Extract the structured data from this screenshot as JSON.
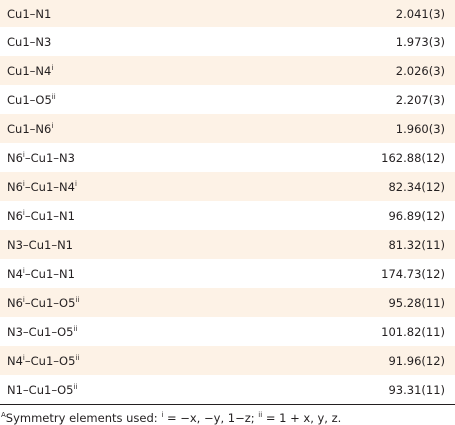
{
  "table": {
    "rows": [
      {
        "atoms": [
          "Cu1",
          "N1"
        ],
        "sup": [
          "",
          ""
        ],
        "value": "2.041(3)"
      },
      {
        "atoms": [
          "Cu1",
          "N3"
        ],
        "sup": [
          "",
          ""
        ],
        "value": "1.973(3)"
      },
      {
        "atoms": [
          "Cu1",
          "N4"
        ],
        "sup": [
          "",
          "i"
        ],
        "value": "2.026(3)"
      },
      {
        "atoms": [
          "Cu1",
          "O5"
        ],
        "sup": [
          "",
          "ii"
        ],
        "value": "2.207(3)"
      },
      {
        "atoms": [
          "Cu1",
          "N6"
        ],
        "sup": [
          "",
          "i"
        ],
        "value": "1.960(3)"
      },
      {
        "atoms": [
          "N6",
          "Cu1",
          "N3"
        ],
        "sup": [
          "i",
          "",
          ""
        ],
        "value": "162.88(12)"
      },
      {
        "atoms": [
          "N6",
          "Cu1",
          "N4"
        ],
        "sup": [
          "i",
          "",
          "i"
        ],
        "value": "82.34(12)"
      },
      {
        "atoms": [
          "N6",
          "Cu1",
          "N1"
        ],
        "sup": [
          "i",
          "",
          ""
        ],
        "value": "96.89(12)"
      },
      {
        "atoms": [
          "N3",
          "Cu1",
          "N1"
        ],
        "sup": [
          "",
          "",
          ""
        ],
        "value": "81.32(11)"
      },
      {
        "atoms": [
          "N4",
          "Cu1",
          "N1"
        ],
        "sup": [
          "i",
          "",
          ""
        ],
        "value": "174.73(12)"
      },
      {
        "atoms": [
          "N6",
          "Cu1",
          "O5"
        ],
        "sup": [
          "i",
          "",
          "ii"
        ],
        "value": "95.28(11)"
      },
      {
        "atoms": [
          "N3",
          "Cu1",
          "O5"
        ],
        "sup": [
          "",
          "",
          "ii"
        ],
        "value": "101.82(11)"
      },
      {
        "atoms": [
          "N4",
          "Cu1",
          "O5"
        ],
        "sup": [
          "i",
          "",
          "ii"
        ],
        "value": "91.96(12)"
      },
      {
        "atoms": [
          "N1",
          "Cu1",
          "O5"
        ],
        "sup": [
          "",
          "",
          "ii"
        ],
        "value": "93.31(11)"
      }
    ],
    "separator": "–"
  },
  "footnote": {
    "marker": "A",
    "text_1": "Symmetry elements used: ",
    "sup_1": "i",
    "text_2": " = −x, −y, 1−z; ",
    "sup_2": "ii",
    "text_3": " = 1 + x, y, z."
  }
}
